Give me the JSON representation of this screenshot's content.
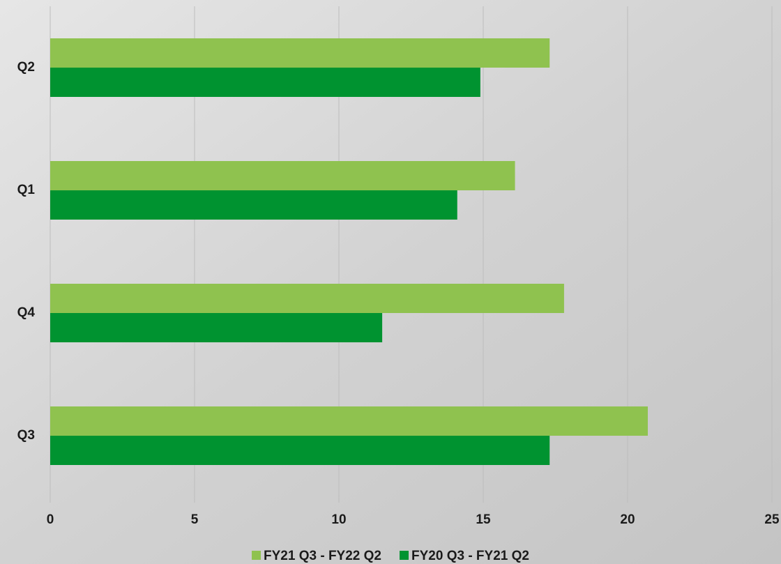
{
  "chart_data": {
    "type": "hbar",
    "categories": [
      "Q2",
      "Q1",
      "Q4",
      "Q3"
    ],
    "series": [
      {
        "name": "FY21 Q3 - FY22 Q2",
        "color": "#8fc24f",
        "values": [
          17.3,
          16.1,
          17.8,
          20.7
        ]
      },
      {
        "name": "FY20 Q3 - FY21 Q2",
        "color": "#009330",
        "values": [
          14.9,
          14.1,
          11.5,
          17.3
        ]
      }
    ],
    "xlim": [
      0,
      25
    ],
    "xticks": [
      0,
      5,
      10,
      15,
      20,
      25
    ],
    "grid": true,
    "legend": "bottom"
  }
}
